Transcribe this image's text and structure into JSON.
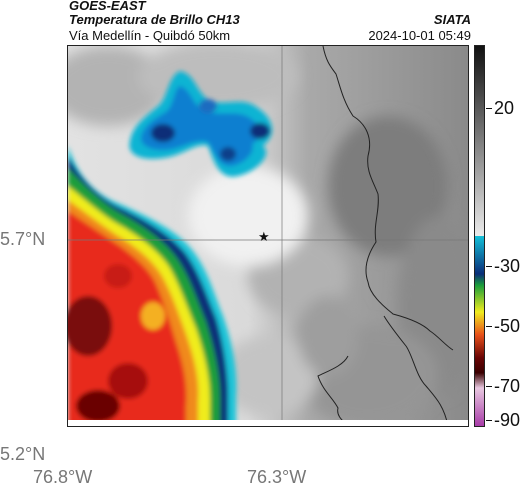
{
  "header": {
    "satellite": "GOES-EAST",
    "product": "Temperatura de Brillo CH13",
    "route": "Vía Medellín - Quibdó 50km",
    "organization": "SIATA",
    "timestamp": "2024-10-01 05:49"
  },
  "map": {
    "lat_labels": [
      "5.7°N",
      "5.2°N"
    ],
    "lon_labels": [
      "76.8°W",
      "76.3°W"
    ],
    "marker_symbol": "★",
    "colors": {
      "warm_gray": "#8e8e8e",
      "cold_gray": "#e6e6e6",
      "cyan": "#12b4d4",
      "dark_blue": "#0a2d78",
      "green": "#2ed92b",
      "yellow": "#ece920",
      "red": "#e82a1a",
      "dark_red": "#7a0808",
      "border_line": "#222222"
    }
  },
  "colorbar": {
    "labels": [
      "20",
      "-30",
      "-50",
      "-70",
      "-90"
    ],
    "stops": [
      {
        "t": 0.0,
        "c": "#111111"
      },
      {
        "t": 0.1,
        "c": "#3c3c3c"
      },
      {
        "t": 0.5,
        "c": "#ebebeb"
      },
      {
        "t": 0.5,
        "c": "#13c0d8"
      },
      {
        "t": 0.6,
        "c": "#0a2d78"
      },
      {
        "t": 0.63,
        "c": "#1b9e3a"
      },
      {
        "t": 0.7,
        "c": "#f0ec1e"
      },
      {
        "t": 0.76,
        "c": "#e8501a"
      },
      {
        "t": 0.82,
        "c": "#6a0505"
      },
      {
        "t": 0.86,
        "c": "#3a0000"
      },
      {
        "t": 0.9,
        "c": "#e8c8e0"
      },
      {
        "t": 1.0,
        "c": "#a83ca8"
      }
    ]
  }
}
